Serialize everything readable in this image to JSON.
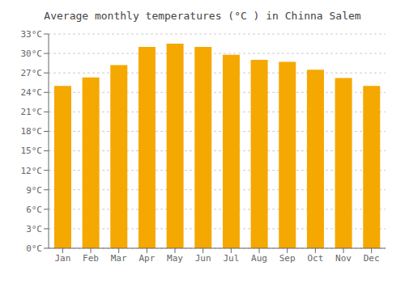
{
  "chart_data": {
    "type": "bar",
    "title": "Average monthly temperatures (°C ) in Chinna Salem",
    "categories": [
      "Jan",
      "Feb",
      "Mar",
      "Apr",
      "May",
      "Jun",
      "Jul",
      "Aug",
      "Sep",
      "Oct",
      "Nov",
      "Dec"
    ],
    "values": [
      25.0,
      26.3,
      28.2,
      31.0,
      31.5,
      31.0,
      29.8,
      29.0,
      28.7,
      27.5,
      26.2,
      25.0
    ],
    "color": "#F5A800",
    "ylim": [
      0,
      33
    ],
    "yticks": [
      {
        "value": 0,
        "label": "0°C"
      },
      {
        "value": 3,
        "label": "3°C"
      },
      {
        "value": 6,
        "label": "6°C"
      },
      {
        "value": 9,
        "label": "9°C"
      },
      {
        "value": 12,
        "label": "12°C"
      },
      {
        "value": 15,
        "label": "15°C"
      },
      {
        "value": 18,
        "label": "18°C"
      },
      {
        "value": 21,
        "label": "21°C"
      },
      {
        "value": 24,
        "label": "24°C"
      },
      {
        "value": 27,
        "label": "27°C"
      },
      {
        "value": 30,
        "label": "30°C"
      },
      {
        "value": 33,
        "label": "33°C"
      }
    ],
    "grid": true
  }
}
